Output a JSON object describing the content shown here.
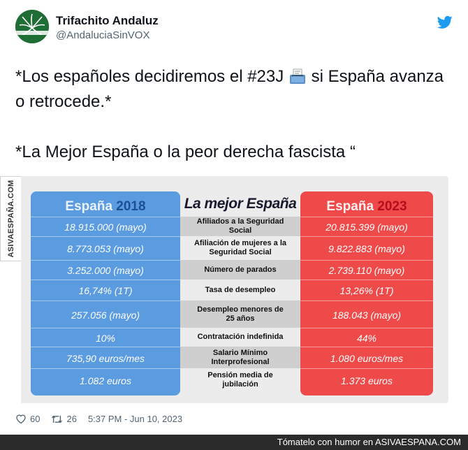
{
  "tweet": {
    "author_name": "Trifachito Andaluz",
    "author_handle": "@AndaluciaSinVOX",
    "text_line1": "*Los españoles decidiremos el #23J",
    "text_line1b": " si España avanza o retrocede.*",
    "text_line2": "*La Mejor España o la peor derecha fascista “",
    "likes": "60",
    "retweets": "26",
    "timestamp": "5:37 PM - Jun 10, 2023",
    "icons": {
      "avatar": "avatar-icon",
      "brand": "twitter-bird-icon",
      "ballot": "ballot-box-icon",
      "like": "heart-icon",
      "retweet": "retweet-icon"
    }
  },
  "infographic": {
    "left_title": "España",
    "left_year": "2018",
    "mid_title": "La mejor España",
    "right_title": "España",
    "right_year": "2023",
    "rows": [
      {
        "label": "Afiliados a la Seguridad Social",
        "v2018": "18.915.000 (mayo)",
        "v2023": "20.815.399 (mayo)"
      },
      {
        "label": "Afiliación de mujeres a la Seguridad Social",
        "v2018": "8.773.053 (mayo)",
        "v2023": "9.822.883 (mayo)"
      },
      {
        "label": "Número de parados",
        "v2018": "3.252.000 (mayo)",
        "v2023": "2.739.110 (mayo)"
      },
      {
        "label": "Tasa de desempleo",
        "v2018": "16,74% (1T)",
        "v2023": "13,26% (1T)"
      },
      {
        "label": "Desempleo menores de 25 años",
        "v2018": "257.056 (mayo)",
        "v2023": "188.043 (mayo)"
      },
      {
        "label": "Contratación indefinida",
        "v2018": "10%",
        "v2023": "44%"
      },
      {
        "label": "Salario Mínimo Interprofesional",
        "v2018": "735,90 euros/mes",
        "v2023": "1.080 euros/mes"
      },
      {
        "label": "Pensión media de jubilación",
        "v2018": "1.082 euros",
        "v2023": "1.373 euros"
      }
    ],
    "colors": {
      "left": "#5b9be0",
      "right": "#ee4a4a",
      "mid": "#cfcfcf"
    }
  },
  "watermark": "ASIVAESPAÑA.COM",
  "bottom_bar": "Tómatelo con humor en ASIVAESPANA.COM"
}
